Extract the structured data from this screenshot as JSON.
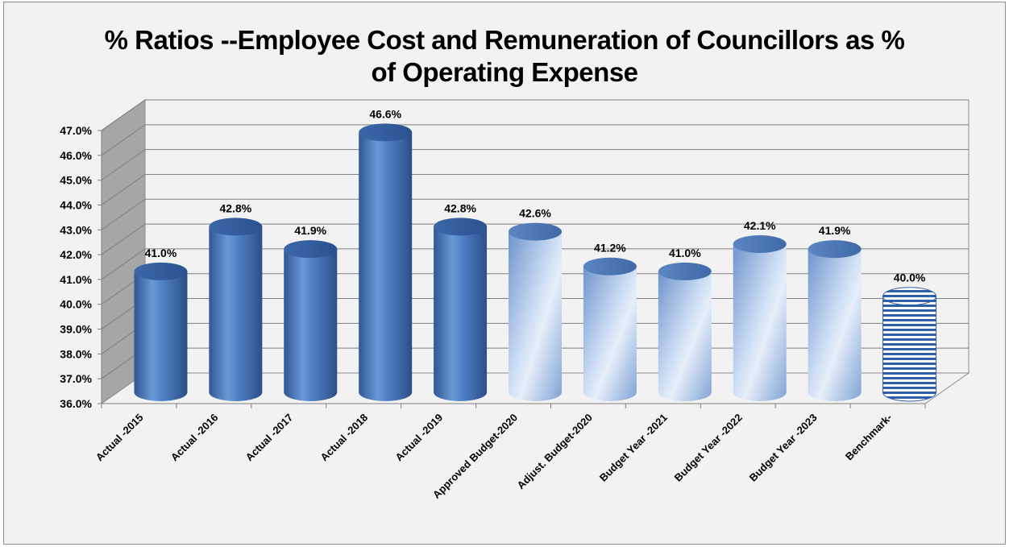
{
  "chart_data": {
    "type": "bar",
    "title_line1": "% Ratios --Employee Cost and Remuneration of Councillors as %",
    "title_line2": "of Operating Expense",
    "categories": [
      "Actual -2015",
      "Actual -2016",
      "Actual -2017",
      "Actual -2018",
      "Actual -2019",
      "Approved Budget-2020",
      "Adjust. Budget-2020",
      "Budget Year -2021",
      "Budget Year -2022",
      "Budget Year -2023",
      "Benchmark-"
    ],
    "values": [
      41.0,
      42.8,
      41.9,
      46.6,
      42.8,
      42.6,
      41.2,
      41.0,
      42.1,
      41.9,
      40.0
    ],
    "data_labels": [
      "41.0%",
      "42.8%",
      "41.9%",
      "46.6%",
      "42.8%",
      "42.6%",
      "41.2%",
      "41.0%",
      "42.1%",
      "41.9%",
      "40.0%"
    ],
    "styles": [
      "actual",
      "actual",
      "actual",
      "actual",
      "actual",
      "budget",
      "budget",
      "budget",
      "budget",
      "budget",
      "benchmark"
    ],
    "y_ticks": [
      "36.0%",
      "37.0%",
      "38.0%",
      "39.0%",
      "40.0%",
      "41.0%",
      "42.0%",
      "43.0%",
      "44.0%",
      "45.0%",
      "46.0%",
      "47.0%"
    ],
    "ylim": [
      36,
      47
    ],
    "xlabel": "",
    "ylabel": "",
    "grid": true,
    "legend": "none",
    "colors": {
      "actual": "#4a7cc0",
      "actual_dark": "#2e5592",
      "actual_light": "#8fb3e6",
      "budget_light": "#dde9f8",
      "budget_mid": "#a8c2e6",
      "budget_dark": "#5b86c2",
      "benchmark_stripe": "#2e5fa8",
      "grid": "#8c8c8c",
      "wall": "#a6a6a6"
    }
  }
}
